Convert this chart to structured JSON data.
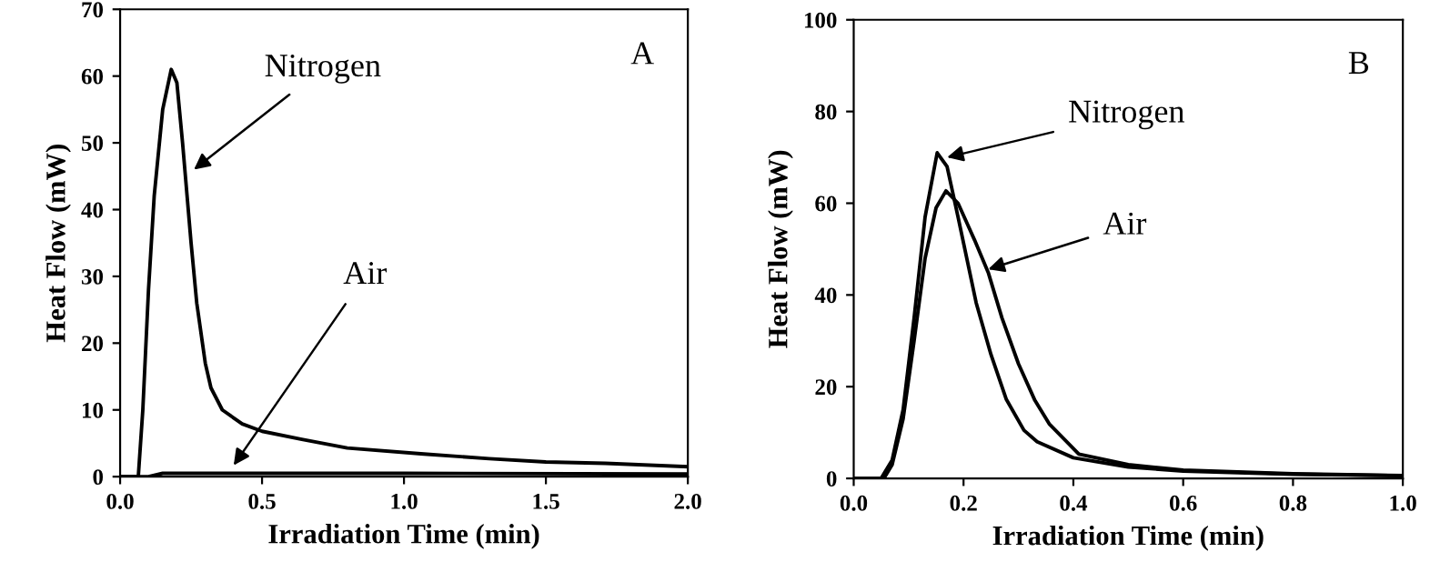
{
  "chart_data": [
    {
      "type": "line",
      "title": "A",
      "xlabel": "Irradiation Time (min)",
      "ylabel": "Heat Flow (mW)",
      "xlim": [
        0,
        2
      ],
      "ylim": [
        0,
        70
      ],
      "xticks": [
        {
          "value": 0,
          "label": "0.0"
        },
        0.5,
        {
          "value": 1,
          "label": "1.0"
        },
        1.5,
        {
          "value": 2,
          "label": "2.0"
        }
      ],
      "yticks": [
        0,
        10,
        20,
        30,
        40,
        50,
        60,
        70
      ],
      "grid": false,
      "legend": false,
      "series": [
        {
          "color": "#000000",
          "x": [
            0,
            0.064,
            0.08,
            0.1,
            0.12,
            0.15,
            0.18,
            0.2,
            0.22,
            0.25,
            0.27,
            0.3,
            0.32,
            0.36,
            0.43,
            0.5,
            0.64,
            0.8,
            1.07,
            1.3,
            1.5,
            1.71,
            2.0
          ],
          "values": [
            0,
            0,
            10,
            28,
            42,
            55,
            61,
            59,
            50,
            35,
            26,
            17,
            13.3,
            10,
            7.9,
            6.8,
            5.6,
            4.3,
            3.4,
            2.7,
            2.2,
            2.0,
            1.5
          ]
        },
        {
          "color": "#000000",
          "x": [
            0,
            0.1,
            0.15,
            0.5,
            1.0,
            2.0
          ],
          "values": [
            0,
            0,
            0.5,
            0.5,
            0.5,
            0.4
          ]
        }
      ],
      "annotations": [
        {
          "text": "Nitrogen",
          "x": 0.26,
          "y": 46
        },
        {
          "text": "Air",
          "x": 0.4,
          "y": 1.7
        }
      ]
    },
    {
      "type": "line",
      "title": "B",
      "xlabel": "Irradiation Time (min)",
      "ylabel": "Heat Flow (mW)",
      "xlim": [
        0,
        1
      ],
      "ylim": [
        0,
        100
      ],
      "xticks": [
        {
          "value": 0,
          "label": "0.0"
        },
        0.2,
        0.4,
        0.6,
        0.8,
        {
          "value": 1,
          "label": "1.0"
        }
      ],
      "yticks": [
        0,
        20,
        40,
        60,
        80,
        100
      ],
      "grid": false,
      "legend": false,
      "series": [
        {
          "color": "#000000",
          "x": [
            0,
            0.05,
            0.07,
            0.09,
            0.11,
            0.13,
            0.152,
            0.17,
            0.19,
            0.223,
            0.25,
            0.278,
            0.31,
            0.334,
            0.4,
            0.5,
            0.6,
            0.8,
            1.0
          ],
          "values": [
            0,
            0,
            4,
            15,
            35,
            57,
            71,
            68,
            57,
            38.3,
            27,
            17.2,
            10.5,
            8,
            4.5,
            2.5,
            1.6,
            0.9,
            0.6
          ]
        },
        {
          "color": "#000000",
          "x": [
            0,
            0.055,
            0.07,
            0.09,
            0.11,
            0.13,
            0.15,
            0.168,
            0.19,
            0.22,
            0.245,
            0.27,
            0.3,
            0.33,
            0.356,
            0.41,
            0.5,
            0.6,
            0.8,
            1.0
          ],
          "values": [
            0,
            0,
            3,
            13,
            30,
            48,
            59,
            62.7,
            60,
            52,
            44.9,
            35,
            25,
            17,
            11.9,
            5.3,
            3,
            1.8,
            1.0,
            0.6
          ]
        }
      ],
      "annotations": [
        {
          "text": "Nitrogen",
          "x": 0.17,
          "y": 70
        },
        {
          "text": "Air",
          "x": 0.245,
          "y": 45.6
        }
      ]
    }
  ]
}
